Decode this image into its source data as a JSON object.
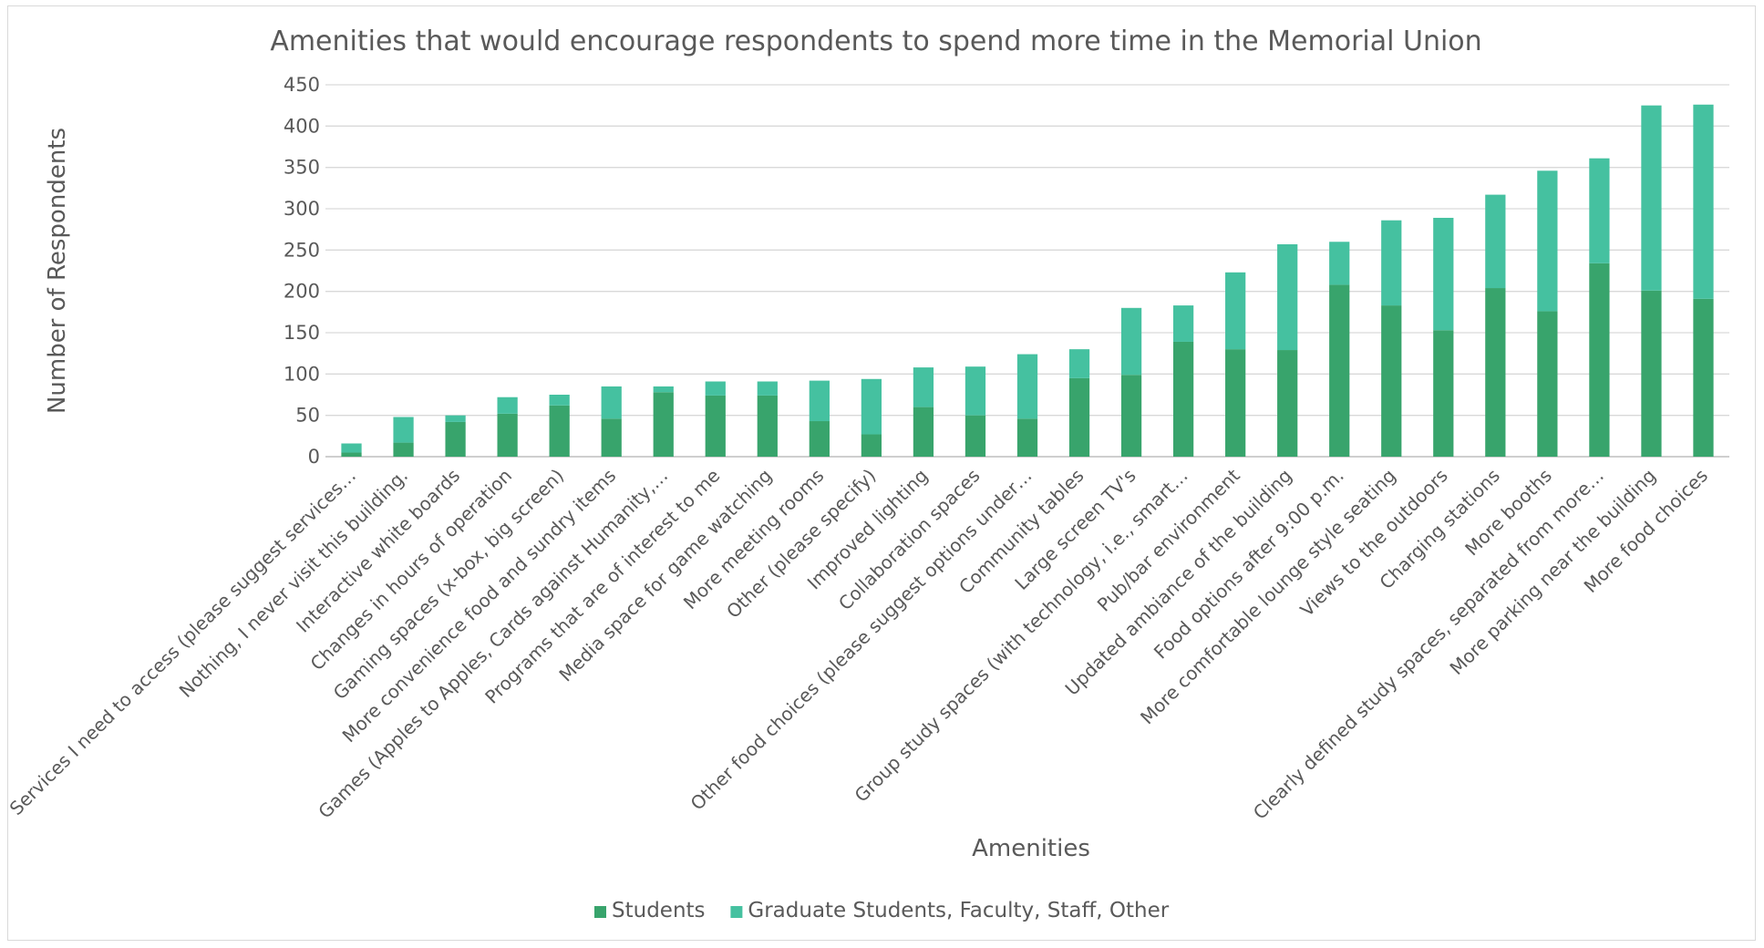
{
  "chart_data": {
    "type": "bar",
    "stacked": true,
    "title": "Amenities that would encourage respondents to spend more time in the Memorial Union",
    "xlabel": "Amenities",
    "ylabel": "Number of Respondents",
    "ylim": [
      0,
      450
    ],
    "yticks": [
      0,
      50,
      100,
      150,
      200,
      250,
      300,
      350,
      400,
      450
    ],
    "grid": true,
    "legend_position": "bottom",
    "categories": [
      "Services I need to access (please suggest services…",
      "Nothing, I never visit this building.",
      "Interactive white boards",
      "Changes in hours of operation",
      "Gaming spaces (x-box, big screen)",
      "More convenience food and sundry items",
      "Games (Apples to Apples, Cards against Humanity,…",
      "Programs that are of interest to me",
      "Media space for game watching",
      "More meeting rooms",
      "Other (please specify)",
      "Improved lighting",
      "Collaboration spaces",
      "Other food choices (please suggest options under…",
      "Community tables",
      "Large screen TV's",
      "Group study spaces (with technology, i.e., smart…",
      "Pub/bar environment",
      "Updated ambiance of the building",
      "Food options after 9:00 p.m.",
      "More comfortable lounge style seating",
      "Views to the outdoors",
      "Charging stations",
      "More booths",
      "Clearly defined study spaces, separated from more…",
      "More parking near the building",
      "More food choices"
    ],
    "series": [
      {
        "name": "Students",
        "color": "#38a46c",
        "values": [
          5,
          17,
          42,
          52,
          62,
          46,
          78,
          74,
          74,
          43,
          27,
          60,
          50,
          46,
          95,
          99,
          139,
          130,
          129,
          208,
          183,
          153,
          204,
          176,
          234,
          201,
          191
        ]
      },
      {
        "name": "Graduate Students, Faculty, Staff, Other",
        "color": "#45c1a0",
        "values": [
          11,
          31,
          8,
          20,
          13,
          39,
          7,
          17,
          17,
          49,
          67,
          48,
          59,
          78,
          35,
          81,
          44,
          93,
          128,
          52,
          103,
          136,
          113,
          170,
          127,
          224,
          235
        ]
      }
    ]
  }
}
